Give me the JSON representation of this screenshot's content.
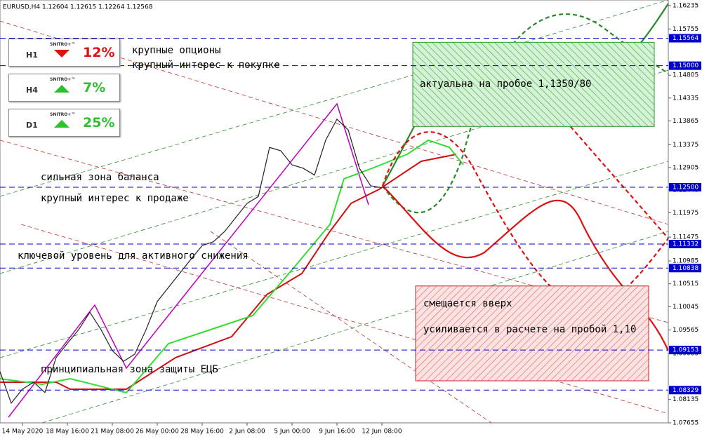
{
  "chart_data": {
    "type": "line",
    "title": "EURUSD,H4  1.12604 1.12615 1.12264 1.12568",
    "x": [
      null,
      null,
      "14 May 2020",
      null,
      null,
      null,
      "18 May 16:00",
      null,
      null,
      null,
      "21 May 08:00",
      null,
      null,
      null,
      "26 May 00:00",
      null,
      null,
      null,
      "28 May 16:00",
      null,
      null,
      null,
      "2 Jun 08:00",
      null,
      null,
      null,
      "5 Jun 00:00",
      null,
      null,
      null,
      "9 Jun 16:00",
      null,
      null,
      null,
      "12 Jun 08:00"
    ],
    "series": [
      {
        "name": "EURUSD",
        "color": "#222222",
        "values": [
          1.0871,
          1.0806,
          1.0835,
          1.0849,
          1.0828,
          1.09,
          1.0929,
          1.0957,
          1.0993,
          1.0957,
          1.0914,
          1.0892,
          1.0907,
          1.0957,
          1.1015,
          1.1044,
          1.1073,
          1.1102,
          1.113,
          1.1138,
          1.1159,
          1.1188,
          1.1217,
          1.1231,
          1.1332,
          1.1325,
          1.1296,
          1.1289,
          1.1275,
          1.1347,
          1.139,
          1.1368,
          1.1289,
          1.1253,
          1.1249
        ]
      }
    ],
    "ylim": [
      1.07655,
      1.16235
    ],
    "yticks": [
      1.16235,
      1.15755,
      1.14805,
      1.14335,
      1.13865,
      1.13375,
      1.12905,
      1.12445,
      1.11975,
      1.11475,
      1.10985,
      1.10515,
      1.10045,
      1.09565,
      1.09085,
      1.08135,
      1.07655
    ],
    "levels": {
      "color": "#0000cc",
      "values": [
        1.15564,
        1.15,
        1.125,
        1.11332,
        1.10838,
        1.09153,
        1.08329
      ],
      "value_labels": [
        "1.15564",
        "1.15000",
        "1.12500",
        "1.11332",
        "1.10838",
        "1.09153",
        "1.08329"
      ]
    },
    "zones": [
      {
        "color": "#2e9a2e",
        "ylim": [
          1.1375,
          1.1548
        ]
      },
      {
        "color": "#d02020",
        "ylim": [
          1.0852,
          1.1047
        ]
      }
    ],
    "annotations": [
      "крупные опционы",
      "крупный интерес к покупке",
      "актуальна на пробое 1,1350/80",
      "сильная зона баланса",
      "крупный интерес к продаже",
      "ключевой уровень для активного снижения",
      "смещается вверх",
      "усиливается в расчете на пробой 1,10",
      "принципиальная зона защиты ЕЦБ"
    ]
  },
  "widgets": [
    {
      "timeframe": "H1",
      "brand": "SNITRO+™",
      "value": "12%",
      "direction": "down"
    },
    {
      "timeframe": "H4",
      "brand": "SNITRO+™",
      "value": "7%",
      "direction": "up"
    },
    {
      "timeframe": "D1",
      "brand": "SNITRO+™",
      "value": "25%",
      "direction": "up"
    }
  ]
}
